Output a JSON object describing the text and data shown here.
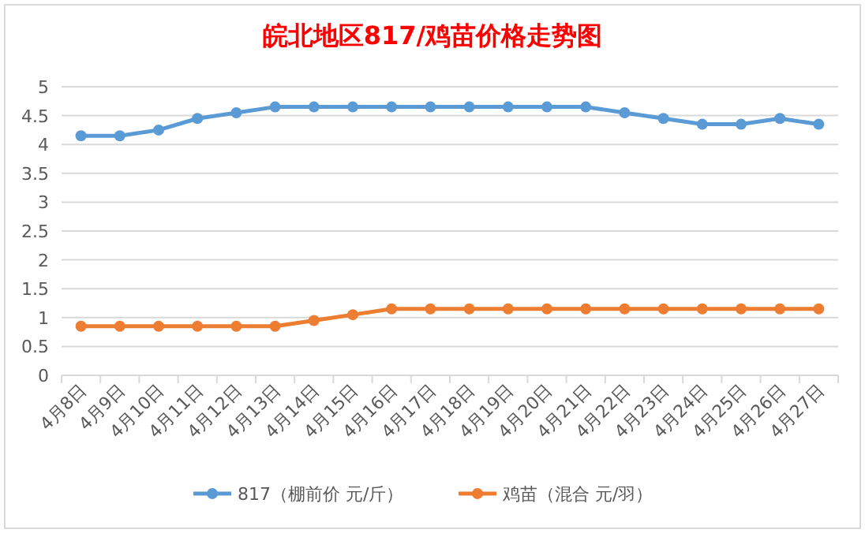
{
  "chart_data": {
    "type": "line",
    "title": "皖北地区817/鸡苗价格走势图",
    "categories": [
      "4月8日",
      "4月9日",
      "4月10日",
      "4月11日",
      "4月12日",
      "4月13日",
      "4月14日",
      "4月15日",
      "4月16日",
      "4月17日",
      "4月18日",
      "4月19日",
      "4月20日",
      "4月21日",
      "4月22日",
      "4月23日",
      "4月24日",
      "4月25日",
      "4月26日",
      "4月27日"
    ],
    "series": [
      {
        "name": "817（棚前价 元/斤）",
        "color": "#5b9bd5",
        "values": [
          4.15,
          4.15,
          4.25,
          4.45,
          4.55,
          4.65,
          4.65,
          4.65,
          4.65,
          4.65,
          4.65,
          4.65,
          4.65,
          4.65,
          4.55,
          4.45,
          4.35,
          4.35,
          4.45,
          4.35
        ]
      },
      {
        "name": "鸡苗（混合 元/羽）",
        "color": "#ed7d31",
        "values": [
          0.85,
          0.85,
          0.85,
          0.85,
          0.85,
          0.85,
          0.95,
          1.05,
          1.15,
          1.15,
          1.15,
          1.15,
          1.15,
          1.15,
          1.15,
          1.15,
          1.15,
          1.15,
          1.15,
          1.15
        ]
      }
    ],
    "ylim": [
      0,
      5
    ],
    "yticks": [
      0,
      0.5,
      1,
      1.5,
      2,
      2.5,
      3,
      3.5,
      4,
      4.5,
      5
    ],
    "grid": "y",
    "legend": "bottom",
    "marker": "circle",
    "line_style": "solid"
  }
}
